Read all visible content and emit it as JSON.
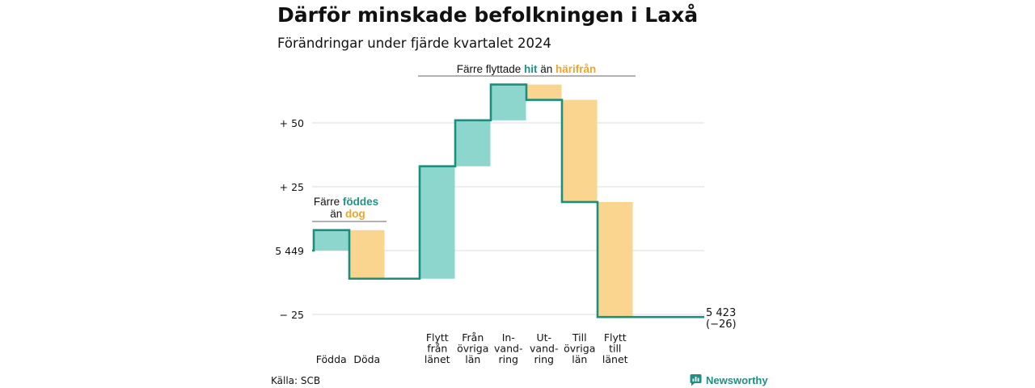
{
  "title": "Därför minskade befolkningen i Laxå",
  "subtitle": "Förändringar under fjärde kvartalet 2024",
  "source": "Källa: SCB",
  "brand": "Newsworthy",
  "colors": {
    "line": "#1a8f7d",
    "increase": "#8cd6cd",
    "decrease": "#fad58f",
    "grid": "#dddddd",
    "accent_teal": "#1e9487",
    "accent_orange": "#f0a52a"
  },
  "annotations": {
    "birth": {
      "line1_prefix": "Färre ",
      "line1_highlight": "föddes",
      "line2_prefix": "än ",
      "line2_highlight": "dog"
    },
    "migration": {
      "prefix": "Färre flyttade ",
      "highlight1": "hit",
      "middle": " än ",
      "highlight2": "härifrån"
    }
  },
  "chart_data": {
    "type": "waterfall",
    "baseline": 5449,
    "end_value": "5 423",
    "end_change": "(−26)",
    "ylim": [
      -26,
      67
    ],
    "y_ticks": [
      {
        "value": 50,
        "label": "+ 50"
      },
      {
        "value": 25,
        "label": "+ 25"
      },
      {
        "value": 0,
        "label": "5 449"
      },
      {
        "value": -25,
        "label": "− 25"
      }
    ],
    "steps": [
      {
        "label": [
          "Födda"
        ],
        "change": 8
      },
      {
        "label": [
          "Döda"
        ],
        "change": -19
      },
      {
        "label": [
          "Flytt",
          "från",
          "länet"
        ],
        "change": 44
      },
      {
        "label": [
          "Från",
          "övriga",
          "län"
        ],
        "change": 18
      },
      {
        "label": [
          "In-",
          "vand-",
          "ring"
        ],
        "change": 14
      },
      {
        "label": [
          "Ut-",
          "vand-",
          "ring"
        ],
        "change": -6
      },
      {
        "label": [
          "Till",
          "övriga",
          "län"
        ],
        "change": -40
      },
      {
        "label": [
          "Flytt",
          "till",
          "länet"
        ],
        "change": -45
      }
    ]
  }
}
